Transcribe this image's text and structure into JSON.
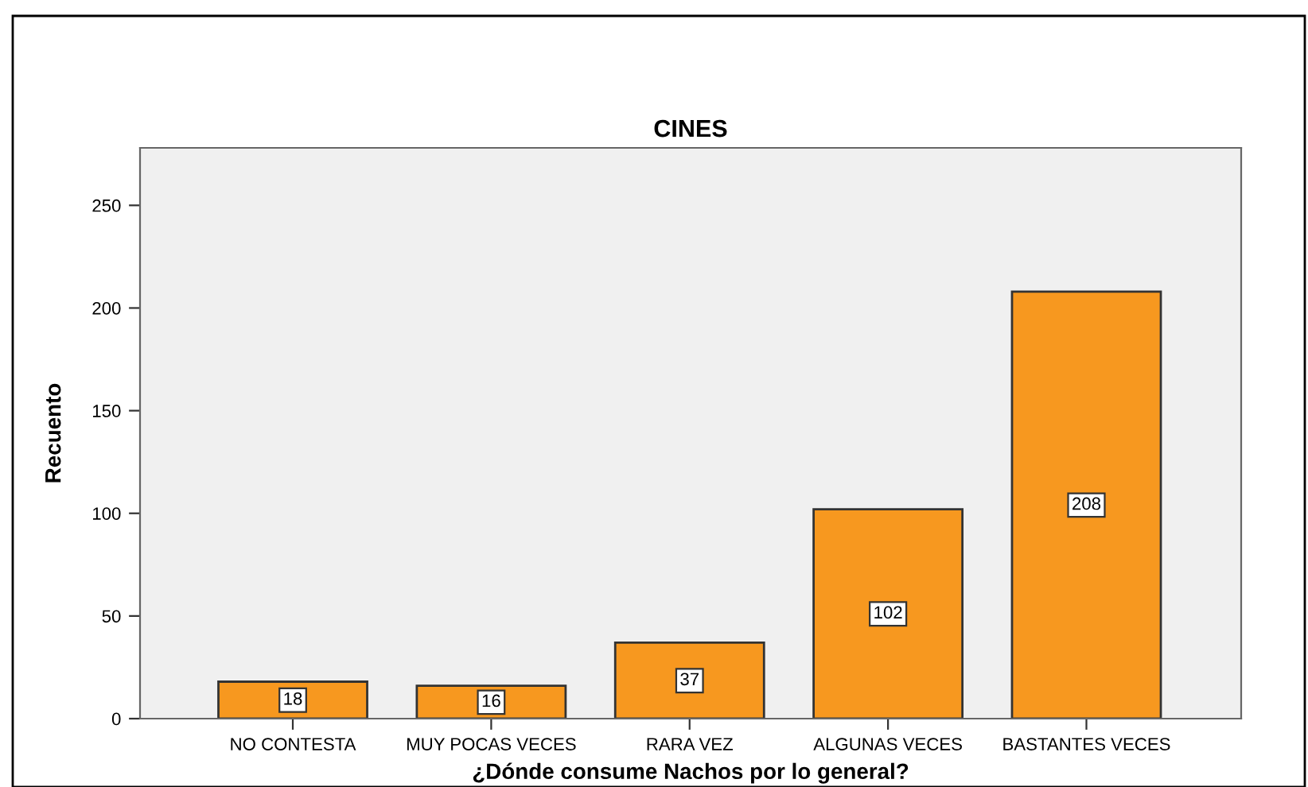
{
  "chart_data": {
    "type": "bar",
    "title": "CINES",
    "xlabel": "¿Dónde consume Nachos por lo general?",
    "ylabel": "Recuento",
    "categories": [
      "NO CONTESTA",
      "MUY POCAS VECES",
      "RARA VEZ",
      "ALGUNAS VECES",
      "BASTANTES VECES"
    ],
    "values": [
      18,
      16,
      37,
      102,
      208
    ],
    "color": "#f7981f",
    "ylim": [
      0,
      278
    ],
    "yticks": [
      0,
      50,
      100,
      150,
      200,
      250
    ],
    "grid": false,
    "data_labels": true
  }
}
